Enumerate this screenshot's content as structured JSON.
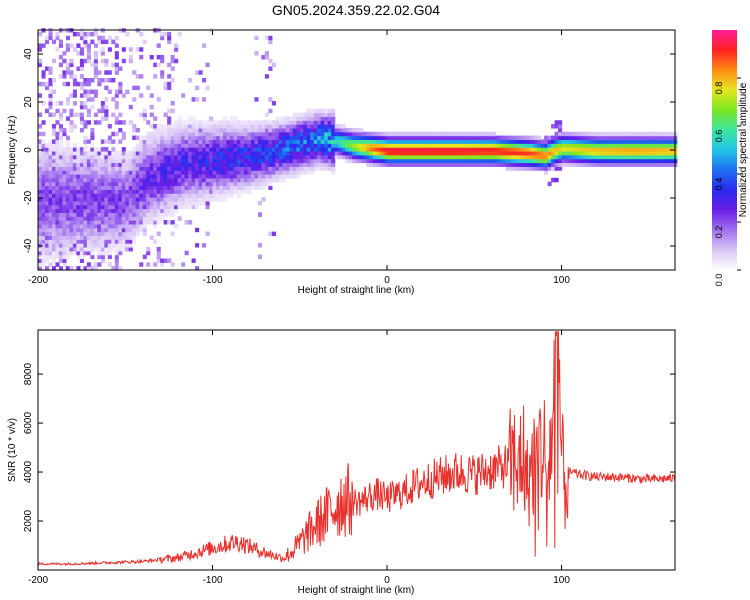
{
  "figure_title": "GN05.2024.359.22.02.G04",
  "colors": {
    "snr_line": "#e8312c",
    "heatmap_background": "#ffffff",
    "heatmap_scale": [
      "#ffffff",
      "#d9c6f5",
      "#a070ee",
      "#6a1fe6",
      "#2a2af0",
      "#1e6ff0",
      "#23c4e6",
      "#3ce6a0",
      "#7ae620",
      "#e6e61e",
      "#ff8a14",
      "#ff2020",
      "#ff1e96"
    ]
  },
  "chart_data": [
    {
      "type": "heatmap",
      "xlabel": "Height of straight line (km)",
      "ylabel": "Frequency (Hz)",
      "xlim": [
        -200,
        165
      ],
      "ylim": [
        -50,
        50
      ],
      "xticks": [
        "-200",
        "-100",
        "0",
        "100"
      ],
      "yticks": [
        "-40",
        "-20",
        "0",
        "20",
        "40"
      ],
      "grid": false,
      "ridge": {
        "x": [
          -150,
          -140,
          -130,
          -120,
          -110,
          -100,
          -90,
          -80,
          -70,
          -60,
          -50,
          -40,
          -30,
          -20,
          -10,
          0,
          20,
          40,
          60,
          80,
          90,
          95,
          100,
          120,
          140,
          165
        ],
        "freq": [
          -22,
          -14,
          -10,
          -7,
          -6,
          -5,
          -4,
          -3,
          -2,
          0,
          2,
          4,
          3,
          1,
          0,
          -1,
          -1,
          -1,
          -1,
          -2,
          -3,
          -1,
          0,
          -1,
          -1,
          -1
        ],
        "amplitude": [
          0.22,
          0.25,
          0.28,
          0.3,
          0.3,
          0.32,
          0.34,
          0.35,
          0.36,
          0.4,
          0.42,
          0.45,
          0.55,
          0.7,
          0.85,
          0.95,
          0.95,
          0.95,
          0.93,
          0.9,
          0.85,
          0.8,
          0.75,
          0.8,
          0.82,
          0.8
        ]
      },
      "colorbar": {
        "label": "Normalized spectral amplitude",
        "range": [
          0,
          1
        ],
        "ticks": [
          "0.0",
          "0.2",
          "0.4",
          "0.6",
          "0.8"
        ]
      }
    },
    {
      "type": "line",
      "xlabel": "Height of straight line (km)",
      "ylabel": "SNR (10 * v/v)",
      "xlim": [
        -200,
        165
      ],
      "ylim": [
        0,
        9800
      ],
      "xticks": [
        "-200",
        "-100",
        "0",
        "100"
      ],
      "yticks": [
        "2000",
        "4000",
        "6000",
        "8000"
      ],
      "grid": false,
      "series": [
        {
          "x": [
            -200,
            -180,
            -160,
            -140,
            -120,
            -110,
            -100,
            -90,
            -85,
            -80,
            -70,
            -60,
            -55,
            -50,
            -45,
            -40,
            -35,
            -30,
            -25,
            -20,
            -15,
            -10,
            -5,
            0,
            10,
            20,
            30,
            40,
            50,
            60,
            70,
            75,
            78,
            80,
            85,
            88,
            90,
            92,
            95,
            97,
            98,
            100,
            102,
            105,
            110,
            120,
            130,
            140,
            150,
            165
          ],
          "values": [
            250,
            250,
            300,
            350,
            500,
            700,
            900,
            1100,
            1150,
            1000,
            700,
            500,
            700,
            1100,
            1500,
            1900,
            2200,
            2600,
            2900,
            2800,
            2800,
            3000,
            3100,
            2900,
            3200,
            3600,
            3800,
            4000,
            3900,
            4100,
            4300,
            4500,
            4800,
            3500,
            4600,
            5000,
            4900,
            3800,
            6000,
            8500,
            9600,
            4500,
            3300,
            4000,
            3900,
            3800,
            3800,
            3750,
            3700,
            3750
          ]
        }
      ]
    }
  ]
}
